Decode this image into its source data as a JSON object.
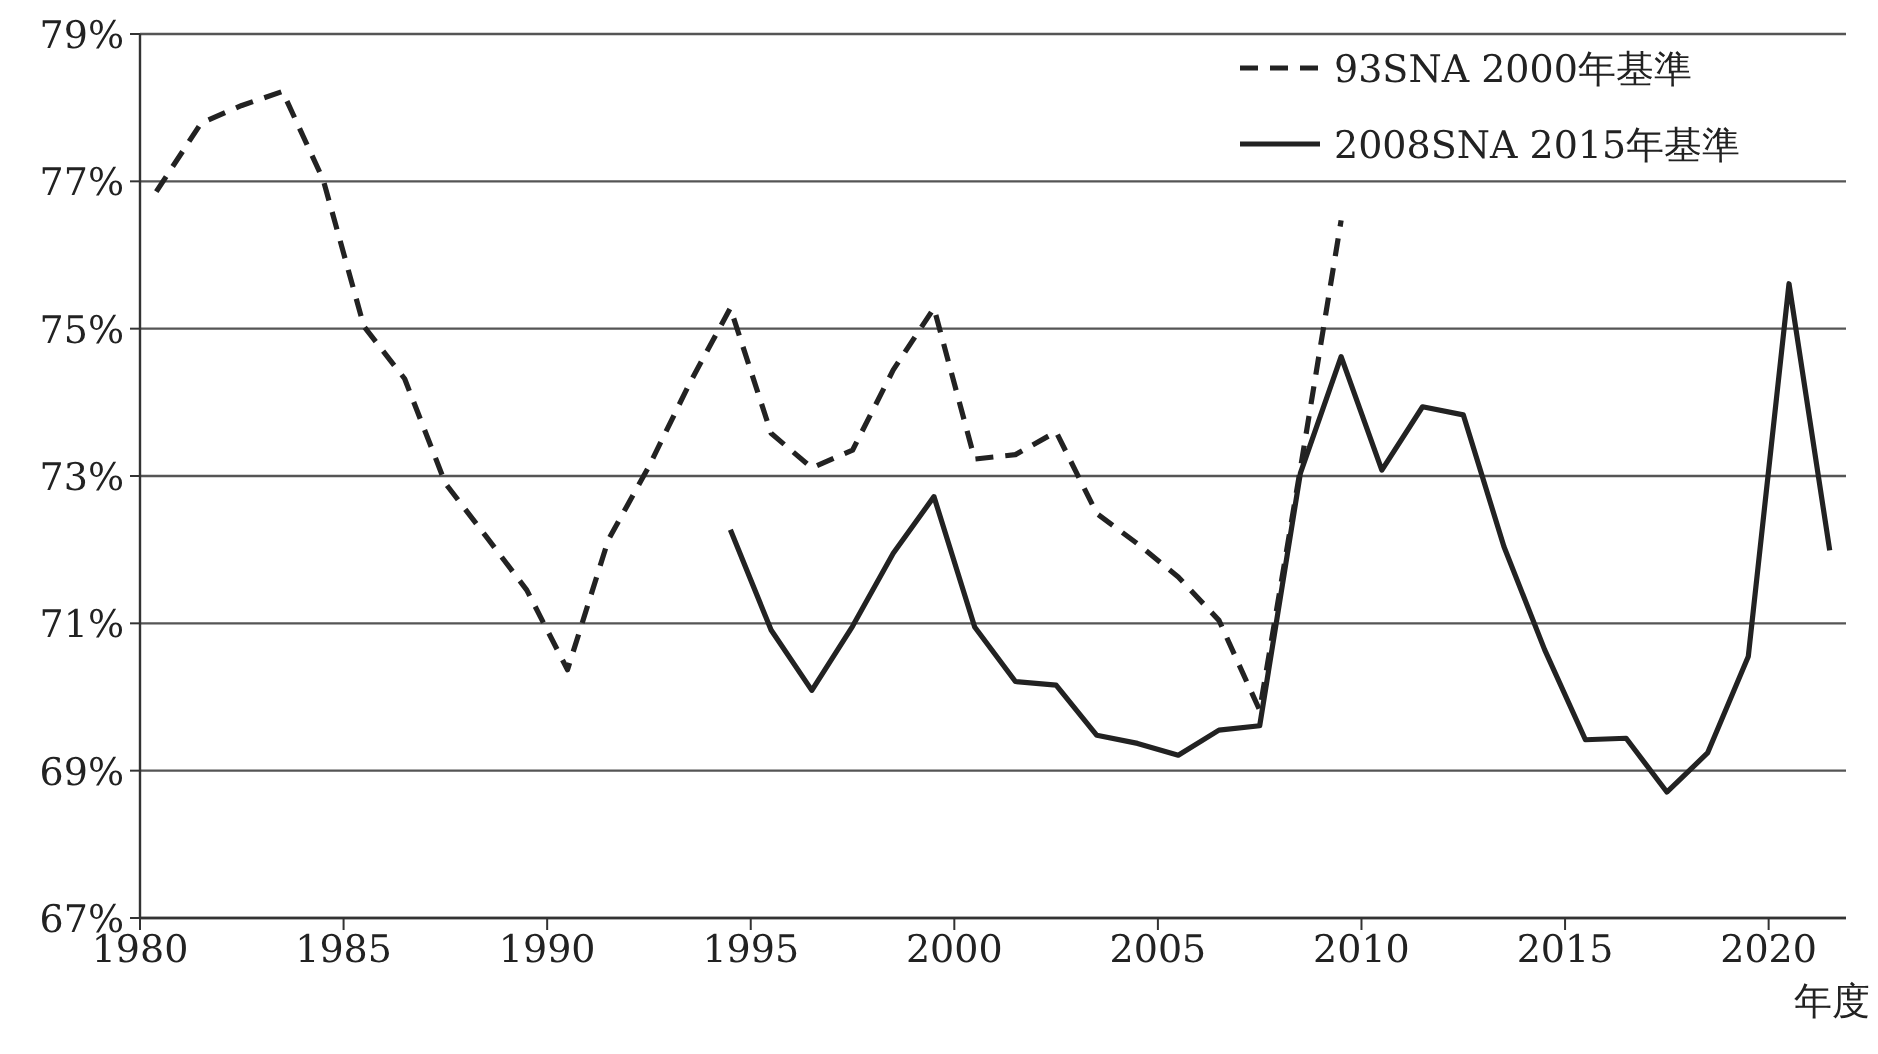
{
  "chart_data": {
    "type": "line",
    "xlabel": "年度",
    "xlim": [
      1980,
      2021.9
    ],
    "xticks": [
      1980,
      1985,
      1990,
      1995,
      2000,
      2005,
      2010,
      2015,
      2020
    ],
    "ylim": [
      67,
      79
    ],
    "yticks": [
      {
        "value": 67,
        "label": "67%"
      },
      {
        "value": 69,
        "label": "69%"
      },
      {
        "value": 71,
        "label": "71%"
      },
      {
        "value": 73,
        "label": "73%"
      },
      {
        "value": 75,
        "label": "75%"
      },
      {
        "value": 77,
        "label": "77%"
      },
      {
        "value": 79,
        "label": "79%"
      }
    ],
    "grid": "y",
    "legend": "top right",
    "series": [
      {
        "name": "93SNA 2000年基準",
        "color": "#222222",
        "line_style": "dashed",
        "x": [
          1980.4,
          1981.5,
          1982.5,
          1983.5,
          1984.5,
          1985.5,
          1986.5,
          1987.5,
          1988.5,
          1989.5,
          1990.5,
          1991.5,
          1992.5,
          1993.5,
          1994.5,
          1995.5,
          1996.5,
          1997.5,
          1998.5,
          1999.5,
          2000.5,
          2001.5,
          2002.5,
          2003.5,
          2004.5,
          2005.5,
          2006.5,
          2007.5,
          2008.5,
          2009.5
        ],
        "values": [
          76.86,
          77.79,
          78.03,
          78.22,
          77.02,
          75.03,
          74.32,
          72.9,
          72.18,
          71.45,
          70.37,
          72.13,
          73.13,
          74.26,
          75.28,
          73.58,
          73.11,
          73.35,
          74.44,
          75.28,
          73.23,
          73.29,
          73.6,
          72.49,
          72.08,
          71.63,
          71.04,
          69.82,
          73.1,
          76.47
        ]
      },
      {
        "name": "2008SNA 2015年基準",
        "color": "#222222",
        "line_style": "solid",
        "x": [
          1994.5,
          1995.5,
          1996.5,
          1997.5,
          1998.5,
          1999.5,
          2000.5,
          2001.5,
          2002.5,
          2003.5,
          2004.5,
          2005.5,
          2006.5,
          2007.5,
          2008.5,
          2009.5,
          2010.5,
          2011.5,
          2012.5,
          2013.5,
          2014.5,
          2015.5,
          2016.5,
          2017.5,
          2018.5,
          2019.5,
          2020.5,
          2021.5
        ],
        "values": [
          72.27,
          70.91,
          70.09,
          70.96,
          71.95,
          72.72,
          70.95,
          70.21,
          70.16,
          69.48,
          69.37,
          69.21,
          69.55,
          69.61,
          73.04,
          74.62,
          73.08,
          73.94,
          73.83,
          72.04,
          70.64,
          69.42,
          69.44,
          68.71,
          69.24,
          70.55,
          75.61,
          71.99
        ]
      }
    ]
  }
}
